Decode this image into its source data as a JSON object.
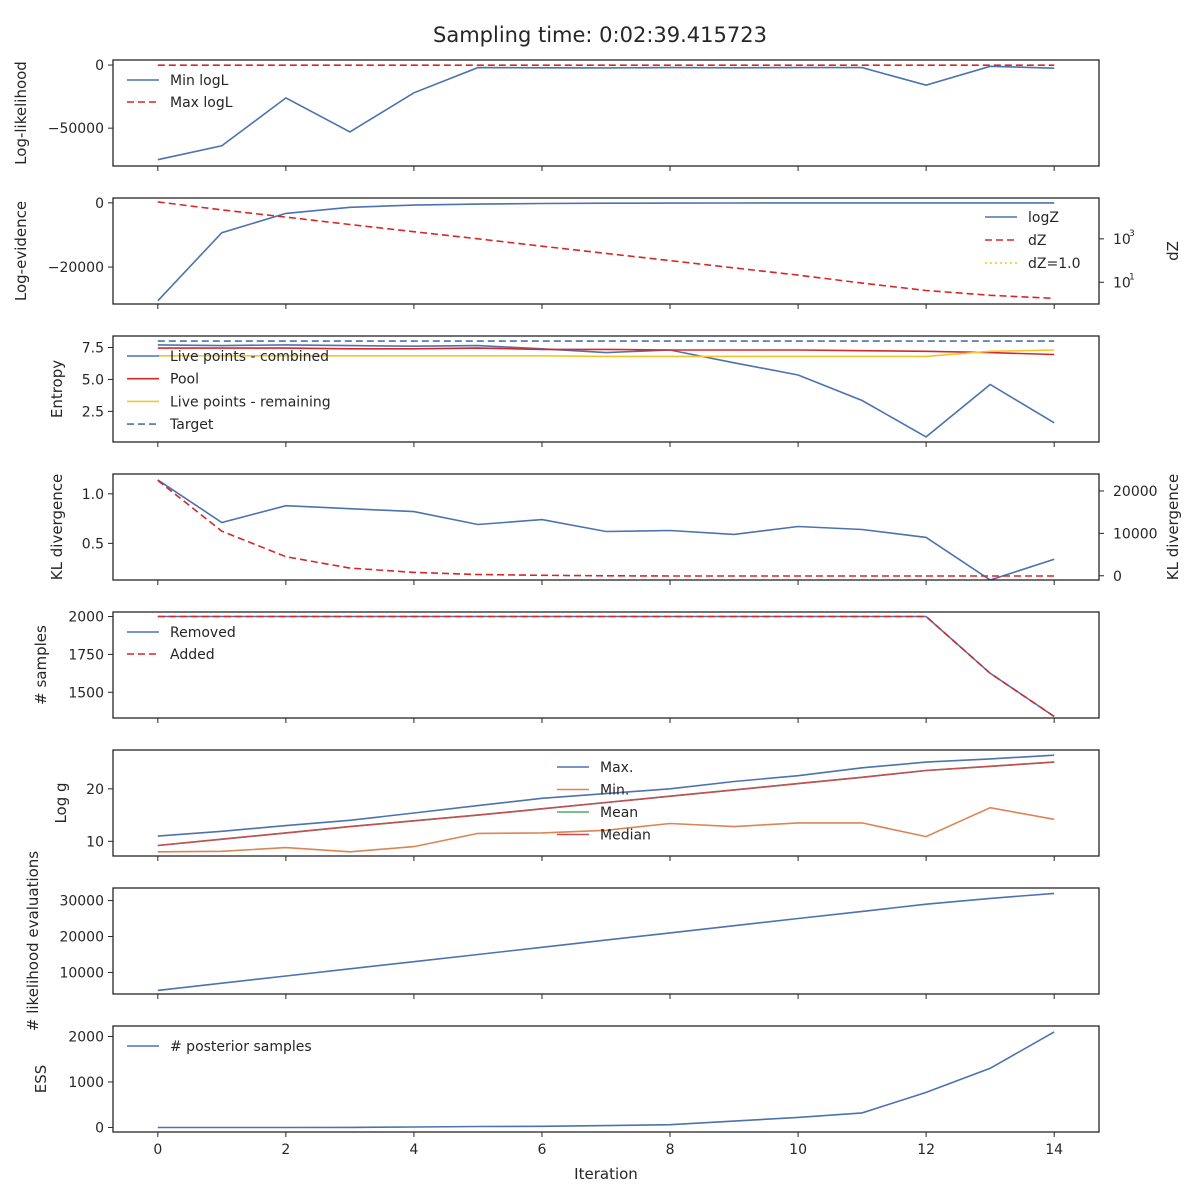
{
  "figure_title": "Sampling time: 0:02:39.415723",
  "colors": {
    "blue": "#4c72b0",
    "red": "#d62728",
    "yellow": "#f6c42a",
    "green": "#55a868",
    "orange": "#dd8452",
    "darkred": "#c44e52"
  },
  "chart_data": [
    {
      "type": "line",
      "ylabel": "Log-likelihood",
      "x": [
        0,
        1,
        2,
        3,
        4,
        5,
        6,
        7,
        8,
        9,
        10,
        11,
        12,
        13,
        14
      ],
      "ylim": [
        -80000,
        4000
      ],
      "yticks": [
        0,
        -50000
      ],
      "ytick_labels": [
        "0",
        "−50000"
      ],
      "legend": "top-left",
      "series": [
        {
          "name": "Min logL",
          "style": "solid",
          "color": "#4c72b0",
          "values": [
            -75000,
            -64000,
            -26000,
            -53000,
            -22000,
            -2000,
            -2200,
            -2300,
            -2000,
            -2200,
            -2000,
            -2000,
            -16000,
            -1000,
            -2500
          ]
        },
        {
          "name": "Max logL",
          "style": "dashed",
          "color": "#d62728",
          "values": [
            -100,
            -100,
            -100,
            -100,
            -100,
            -100,
            -100,
            -100,
            -100,
            -100,
            -100,
            -100,
            -100,
            -100,
            -100
          ]
        }
      ]
    },
    {
      "type": "line",
      "ylabel": "Log-evidence",
      "ylabel_right": "dZ",
      "x": [
        0,
        1,
        2,
        3,
        4,
        5,
        6,
        7,
        8,
        9,
        10,
        11,
        12,
        13,
        14
      ],
      "ylim": [
        -31500,
        1500
      ],
      "yticks": [
        0,
        -20000
      ],
      "ytick_labels": [
        "0",
        "−20000"
      ],
      "y2_scale": "log",
      "y2lim_log10": [
        0.0,
        4.88
      ],
      "y2ticks_log10": [
        1,
        3
      ],
      "y2tick_labels": [
        {
          "base": "10",
          "exp": "1"
        },
        {
          "base": "10",
          "exp": "3"
        }
      ],
      "legend": "right",
      "series": [
        {
          "name": "logZ",
          "style": "solid",
          "color": "#4c72b0",
          "axis": "left",
          "values": [
            -30500,
            -9300,
            -3300,
            -1400,
            -700,
            -400,
            -200,
            -120,
            -80,
            -50,
            -30,
            -20,
            -15,
            -10,
            -10
          ]
        },
        {
          "name": "dZ",
          "style": "dashed",
          "color": "#d62728",
          "axis": "right",
          "values_log10": [
            4.7,
            4.33,
            4.0,
            3.66,
            3.33,
            3.0,
            2.66,
            2.33,
            2.0,
            1.66,
            1.33,
            0.96,
            0.62,
            0.4,
            0.26
          ]
        },
        {
          "name": "dZ=1.0",
          "style": "dotted",
          "color": "#f6c42a",
          "axis": "right",
          "values_log10": []
        }
      ]
    },
    {
      "type": "line",
      "ylabel": "Entropy",
      "x": [
        0,
        1,
        2,
        3,
        4,
        5,
        6,
        7,
        8,
        9,
        10,
        11,
        12,
        13,
        14
      ],
      "ylim": [
        0.1,
        8.4
      ],
      "yticks": [
        2.5,
        5.0,
        7.5
      ],
      "ytick_labels": [
        "2.5",
        "5.0",
        "7.5"
      ],
      "legend": "left",
      "series": [
        {
          "name": "Live points - combined",
          "style": "solid",
          "color": "#4c72b0",
          "values": [
            7.7,
            7.65,
            7.7,
            7.65,
            7.6,
            7.65,
            7.4,
            7.1,
            7.3,
            6.3,
            5.35,
            3.35,
            0.5,
            4.6,
            1.6
          ]
        },
        {
          "name": "Pool",
          "style": "solid",
          "color": "#d62728",
          "values": [
            7.45,
            7.45,
            7.45,
            7.4,
            7.4,
            7.45,
            7.35,
            7.35,
            7.3,
            7.3,
            7.3,
            7.25,
            7.2,
            7.1,
            6.95
          ]
        },
        {
          "name": "Live points - remaining",
          "style": "solid",
          "color": "#f6c42a",
          "values": [
            6.85,
            6.85,
            6.85,
            6.85,
            6.85,
            6.85,
            6.85,
            6.8,
            6.8,
            6.8,
            6.8,
            6.8,
            6.8,
            7.2,
            7.3
          ]
        },
        {
          "name": "Target",
          "style": "dashed",
          "color": "#4c72b0",
          "values": [
            8.0,
            8.0,
            8.0,
            8.0,
            8.0,
            8.0,
            8.0,
            8.0,
            8.0,
            8.0,
            8.0,
            8.0,
            8.0,
            8.0,
            8.0
          ]
        }
      ]
    },
    {
      "type": "line",
      "ylabel": "KL divergence",
      "ylabel_right": "KL divergence",
      "x": [
        0,
        1,
        2,
        3,
        4,
        5,
        6,
        7,
        8,
        9,
        10,
        11,
        12,
        13,
        14
      ],
      "ylim": [
        0.13,
        1.2
      ],
      "yticks": [
        0.5,
        1.0
      ],
      "ytick_labels": [
        "0.5",
        "1.0"
      ],
      "y2lim": [
        -1000,
        24000
      ],
      "y2ticks": [
        0,
        10000,
        20000
      ],
      "y2tick_labels": [
        "0",
        "10000",
        "20000"
      ],
      "series": [
        {
          "name": "",
          "style": "solid",
          "color": "#4c72b0",
          "axis": "left",
          "values": [
            1.14,
            0.71,
            0.88,
            0.85,
            0.82,
            0.69,
            0.74,
            0.62,
            0.63,
            0.59,
            0.67,
            0.64,
            0.56,
            0.13,
            0.34
          ]
        },
        {
          "name": "",
          "style": "dashed",
          "color": "#d62728",
          "axis": "right",
          "values": [
            22500,
            10500,
            4500,
            1800,
            800,
            300,
            100,
            0,
            -50,
            -50,
            -50,
            -50,
            -50,
            -50,
            -50
          ]
        }
      ]
    },
    {
      "type": "line",
      "ylabel": "# samples",
      "x": [
        0,
        1,
        2,
        3,
        4,
        5,
        6,
        7,
        8,
        9,
        10,
        11,
        12,
        13,
        14
      ],
      "ylim": [
        1330,
        2030
      ],
      "yticks": [
        1500,
        1750,
        2000
      ],
      "ytick_labels": [
        "1500",
        "1750",
        "2000"
      ],
      "legend": "top-left",
      "series": [
        {
          "name": "Removed",
          "style": "solid",
          "color": "#4c72b0",
          "values": [
            2000,
            2000,
            2000,
            2000,
            2000,
            2000,
            2000,
            2000,
            2000,
            2000,
            2000,
            2000,
            2000,
            1625,
            1340
          ]
        },
        {
          "name": "Added",
          "style": "dashed",
          "color": "#d62728",
          "values": [
            2000,
            2000,
            2000,
            2000,
            2000,
            2000,
            2000,
            2000,
            2000,
            2000,
            2000,
            2000,
            2000,
            1625,
            1340
          ]
        }
      ]
    },
    {
      "type": "line",
      "ylabel": "Log g",
      "x": [
        0,
        1,
        2,
        3,
        4,
        5,
        6,
        7,
        8,
        9,
        10,
        11,
        12,
        13,
        14
      ],
      "ylim": [
        7.2,
        27.4
      ],
      "yticks": [
        10,
        20
      ],
      "ytick_labels": [
        "10",
        "20"
      ],
      "legend": "center",
      "series": [
        {
          "name": "Max.",
          "style": "solid",
          "color": "#4c72b0",
          "values": [
            11.0,
            11.9,
            13.0,
            14.0,
            15.4,
            16.8,
            18.2,
            19.1,
            20.0,
            21.4,
            22.5,
            24.0,
            25.1,
            25.7,
            26.4
          ]
        },
        {
          "name": "Min.",
          "style": "solid",
          "color": "#dd8452",
          "values": [
            8.0,
            8.1,
            8.8,
            8.0,
            9.0,
            11.5,
            11.6,
            12.1,
            13.4,
            12.8,
            13.5,
            13.5,
            10.9,
            16.4,
            14.2
          ]
        },
        {
          "name": "Mean",
          "style": "solid",
          "color": "#55a868",
          "values": [
            9.2,
            10.4,
            11.6,
            12.8,
            13.9,
            15.0,
            16.2,
            17.4,
            18.6,
            19.8,
            21.0,
            22.2,
            23.5,
            24.3,
            25.1
          ]
        },
        {
          "name": "Median",
          "style": "solid",
          "color": "#c44e52",
          "values": [
            9.2,
            10.4,
            11.6,
            12.8,
            13.9,
            15.0,
            16.2,
            17.4,
            18.6,
            19.8,
            21.0,
            22.2,
            23.5,
            24.3,
            25.1
          ]
        }
      ]
    },
    {
      "type": "line",
      "ylabel": "# likelihood evaluations",
      "x": [
        0,
        1,
        2,
        3,
        4,
        5,
        6,
        7,
        8,
        9,
        10,
        11,
        12,
        13,
        14
      ],
      "ylim": [
        4000,
        33500
      ],
      "yticks": [
        10000,
        20000,
        30000
      ],
      "ytick_labels": [
        "10000",
        "20000",
        "30000"
      ],
      "series": [
        {
          "name": "",
          "style": "solid",
          "color": "#4c72b0",
          "values": [
            5000,
            7000,
            9000,
            11000,
            13000,
            15000,
            17000,
            19000,
            21000,
            23000,
            25000,
            27000,
            29000,
            30600,
            32000
          ]
        }
      ]
    },
    {
      "type": "line",
      "ylabel": "ESS",
      "xlabel": "Iteration",
      "x": [
        0,
        1,
        2,
        3,
        4,
        5,
        6,
        7,
        8,
        9,
        10,
        11,
        12,
        13,
        14
      ],
      "ylim": [
        -100,
        2230
      ],
      "yticks": [
        0,
        1000,
        2000
      ],
      "ytick_labels": [
        "0",
        "1000",
        "2000"
      ],
      "xticks": [
        0,
        2,
        4,
        6,
        8,
        10,
        12,
        14
      ],
      "xtick_labels": [
        "0",
        "2",
        "4",
        "6",
        "8",
        "10",
        "12",
        "14"
      ],
      "legend": "top-left",
      "series": [
        {
          "name": "# posterior samples",
          "style": "solid",
          "color": "#4c72b0",
          "values": [
            0,
            0,
            0,
            2,
            10,
            20,
            25,
            40,
            60,
            140,
            220,
            320,
            770,
            1300,
            2100
          ]
        }
      ]
    }
  ]
}
